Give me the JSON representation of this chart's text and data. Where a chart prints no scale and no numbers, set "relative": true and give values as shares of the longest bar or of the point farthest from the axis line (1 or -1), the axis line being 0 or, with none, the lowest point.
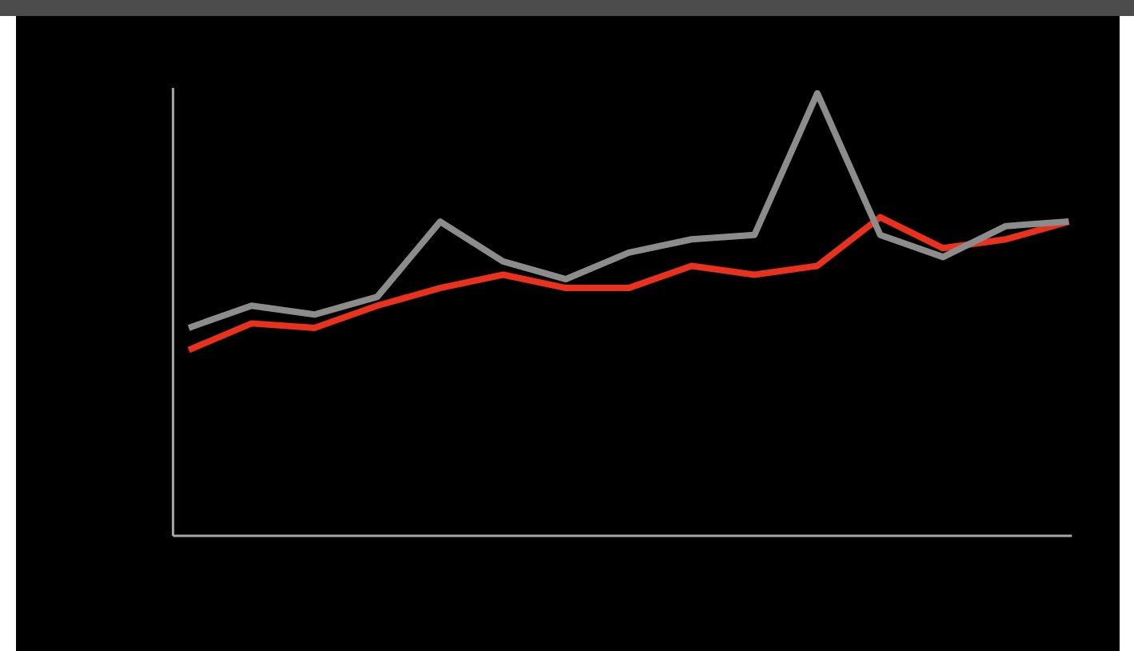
{
  "chart_data": {
    "type": "line",
    "relative": true,
    "categories": [
      null,
      null,
      null,
      null,
      null,
      null,
      null,
      null,
      null,
      null,
      null,
      null,
      null,
      null,
      null
    ],
    "marker": "none",
    "line_style": "solid",
    "series": [
      {
        "color": "#e8321e",
        "values": [
          0.42,
          0.48,
          0.47,
          0.52,
          0.56,
          0.59,
          0.56,
          0.56,
          0.61,
          0.59,
          0.61,
          0.72,
          0.65,
          0.67,
          0.71
        ]
      },
      {
        "color": "#8c8c8c",
        "values": [
          0.47,
          0.52,
          0.5,
          0.54,
          0.71,
          0.62,
          0.58,
          0.64,
          0.67,
          0.68,
          1.0,
          0.68,
          0.63,
          0.7,
          0.71
        ]
      }
    ]
  }
}
